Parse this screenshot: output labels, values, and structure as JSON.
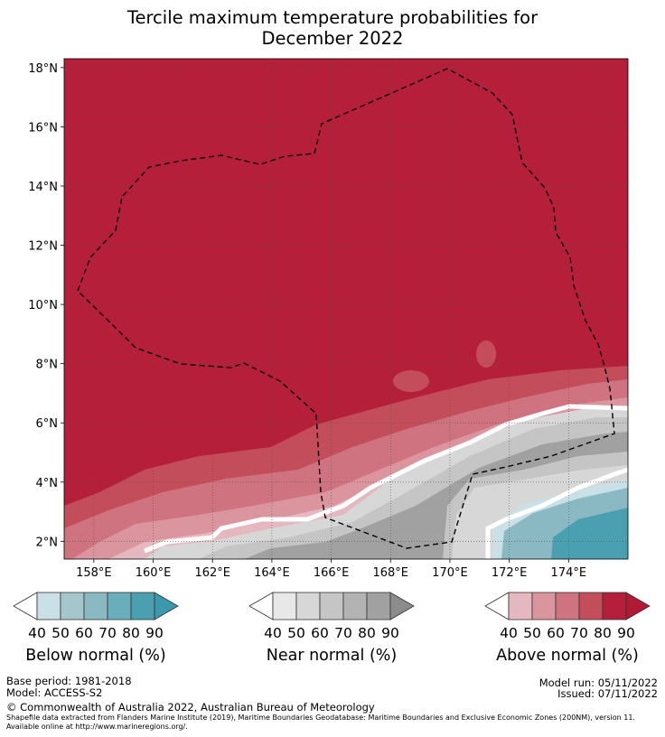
{
  "title_line1": "Tercile maximum temperature probabilities for",
  "title_line2": "December 2022",
  "colors": {
    "above": [
      "#e5b7bf",
      "#da959f",
      "#cf7380",
      "#c44d5c",
      "#b51f3a"
    ],
    "near": [
      "#e8e8e8",
      "#d7d7d7",
      "#c5c5c5",
      "#b3b3b3",
      "#a1a1a1"
    ],
    "below": [
      "#c8e0e6",
      "#a5c6cd",
      "#8ab9c4",
      "#6aadbb",
      "#4a9fb0"
    ],
    "grid": "#555555",
    "border": "#000000"
  },
  "chart_data": {
    "type": "heatmap",
    "title": "Tercile maximum temperature probabilities for December 2022",
    "x_ticks": [
      "158°E",
      "160°E",
      "162°E",
      "164°E",
      "166°E",
      "168°E",
      "170°E",
      "172°E",
      "174°E"
    ],
    "y_ticks": [
      "2°N",
      "4°N",
      "6°N",
      "8°N",
      "10°N",
      "12°N",
      "14°N",
      "16°N",
      "18°N"
    ],
    "xlim": [
      157,
      176
    ],
    "ylim": [
      1.4,
      18.3
    ],
    "grid": true,
    "categories": [
      "Below normal (%)",
      "Near normal (%)",
      "Above normal (%)"
    ],
    "colorbar_ticks": [
      "40",
      "50",
      "60",
      "70",
      "80",
      "90"
    ],
    "regions": [
      {
        "category": "Above normal",
        "level": 90,
        "description_value": ">90",
        "extent": "most of domain"
      },
      {
        "category": "Near normal",
        "level": 80,
        "extent": "south-east"
      },
      {
        "category": "Below normal",
        "level": 70,
        "extent": "far south-east corner"
      }
    ]
  },
  "colorbar_labels": {
    "below": "Below normal (%)",
    "near": "Near normal (%)",
    "above": "Above normal (%)"
  },
  "footer": {
    "base_period": "Base period: 1981-2018",
    "model": "Model: ACCESS-S2",
    "model_run": "Model run: 05/11/2022",
    "issued": "Issued: 07/11/2022",
    "copyright": "© Commonwealth of Australia 2022, Australian Bureau of Meteorology",
    "shapefile": "Shapefile data extracted from Flanders Marine Institute (2019), Maritime Boundaries Geodatabase: Maritime Boundaries and Exclusive Economic Zones (200NM), version 11. Available online at http://www.marineregions.org/."
  }
}
